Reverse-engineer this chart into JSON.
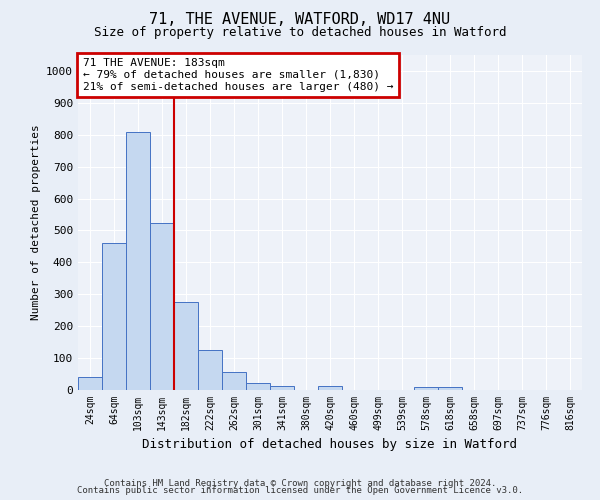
{
  "title": "71, THE AVENUE, WATFORD, WD17 4NU",
  "subtitle": "Size of property relative to detached houses in Watford",
  "xlabel": "Distribution of detached houses by size in Watford",
  "ylabel": "Number of detached properties",
  "categories": [
    "24sqm",
    "64sqm",
    "103sqm",
    "143sqm",
    "182sqm",
    "222sqm",
    "262sqm",
    "301sqm",
    "341sqm",
    "380sqm",
    "420sqm",
    "460sqm",
    "499sqm",
    "539sqm",
    "578sqm",
    "618sqm",
    "658sqm",
    "697sqm",
    "737sqm",
    "776sqm",
    "816sqm"
  ],
  "values": [
    40,
    460,
    810,
    525,
    275,
    125,
    57,
    22,
    12,
    0,
    12,
    0,
    0,
    0,
    10,
    10,
    0,
    0,
    0,
    0,
    0
  ],
  "bar_color": "#c5d8f0",
  "bar_edge_color": "#4472c4",
  "vline_color": "#cc0000",
  "vline_x_index": 4,
  "annotation_text": "71 THE AVENUE: 183sqm\n← 79% of detached houses are smaller (1,830)\n21% of semi-detached houses are larger (480) →",
  "annotation_box_color": "#cc0000",
  "ylim": [
    0,
    1050
  ],
  "yticks": [
    0,
    100,
    200,
    300,
    400,
    500,
    600,
    700,
    800,
    900,
    1000
  ],
  "footer1": "Contains HM Land Registry data © Crown copyright and database right 2024.",
  "footer2": "Contains public sector information licensed under the Open Government Licence v3.0.",
  "bg_color": "#e8eef7",
  "plot_bg_color": "#eef2f9",
  "title_fontsize": 11,
  "subtitle_fontsize": 9,
  "ylabel_fontsize": 8,
  "xlabel_fontsize": 9,
  "tick_fontsize": 7,
  "annot_fontsize": 8
}
